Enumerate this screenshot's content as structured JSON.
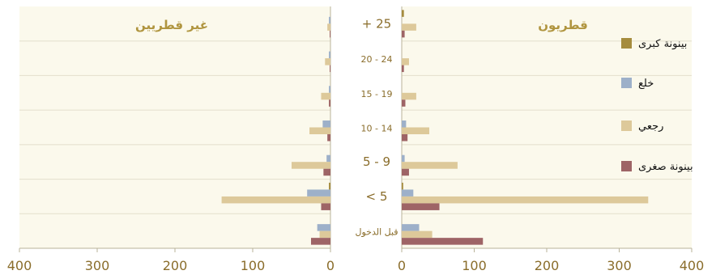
{
  "colors": {
    "background": "#fbf9ec",
    "gridline": "#e3dfcc",
    "axis": "#b9b39a",
    "label": "#8a6d2b",
    "title": "#b0953f"
  },
  "chart_data": {
    "type": "bar",
    "orientation": "horizontal",
    "layout": "back-to-back",
    "categories": [
      "قبل الدخول",
      "< 5",
      "5 - 9",
      "10 - 14",
      "15 - 19",
      "20 - 24",
      "+ 25"
    ],
    "xticks": [
      "400",
      "300",
      "200",
      "100",
      "0"
    ],
    "xlim": [
      0,
      400
    ],
    "grid": true,
    "legend_position": "right",
    "panels": [
      {
        "id": "qatari",
        "title": "قطريون",
        "series": [
          {
            "name": "بينونة كبرى",
            "color": "#a58c3e",
            "values": [
              0,
              2,
              0,
              0,
              0,
              0,
              3
            ]
          },
          {
            "name": "خلع",
            "color": "#9db0c9",
            "values": [
              24,
              16,
              4,
              6,
              0,
              0,
              0
            ]
          },
          {
            "name": "رجعي",
            "color": "#ddc99a",
            "values": [
              42,
              340,
              77,
              38,
              20,
              10,
              20
            ]
          },
          {
            "name": "بينونة صغرى",
            "color": "#9e6466",
            "values": [
              112,
              52,
              10,
              8,
              5,
              3,
              4
            ]
          }
        ]
      },
      {
        "id": "non_qatari",
        "title": "غير قطريين",
        "series": [
          {
            "name": "بينونة كبرى",
            "color": "#a58c3e",
            "values": [
              0,
              2,
              0,
              0,
              0,
              0,
              0
            ]
          },
          {
            "name": "خلع",
            "color": "#9db0c9",
            "values": [
              17,
              30,
              5,
              10,
              2,
              2,
              2
            ]
          },
          {
            "name": "رجعي",
            "color": "#ddc99a",
            "values": [
              14,
              140,
              50,
              27,
              12,
              7,
              4
            ]
          },
          {
            "name": "بينونة صغرى",
            "color": "#9e6466",
            "values": [
              25,
              12,
              9,
              4,
              2,
              1,
              1
            ]
          }
        ]
      }
    ]
  }
}
